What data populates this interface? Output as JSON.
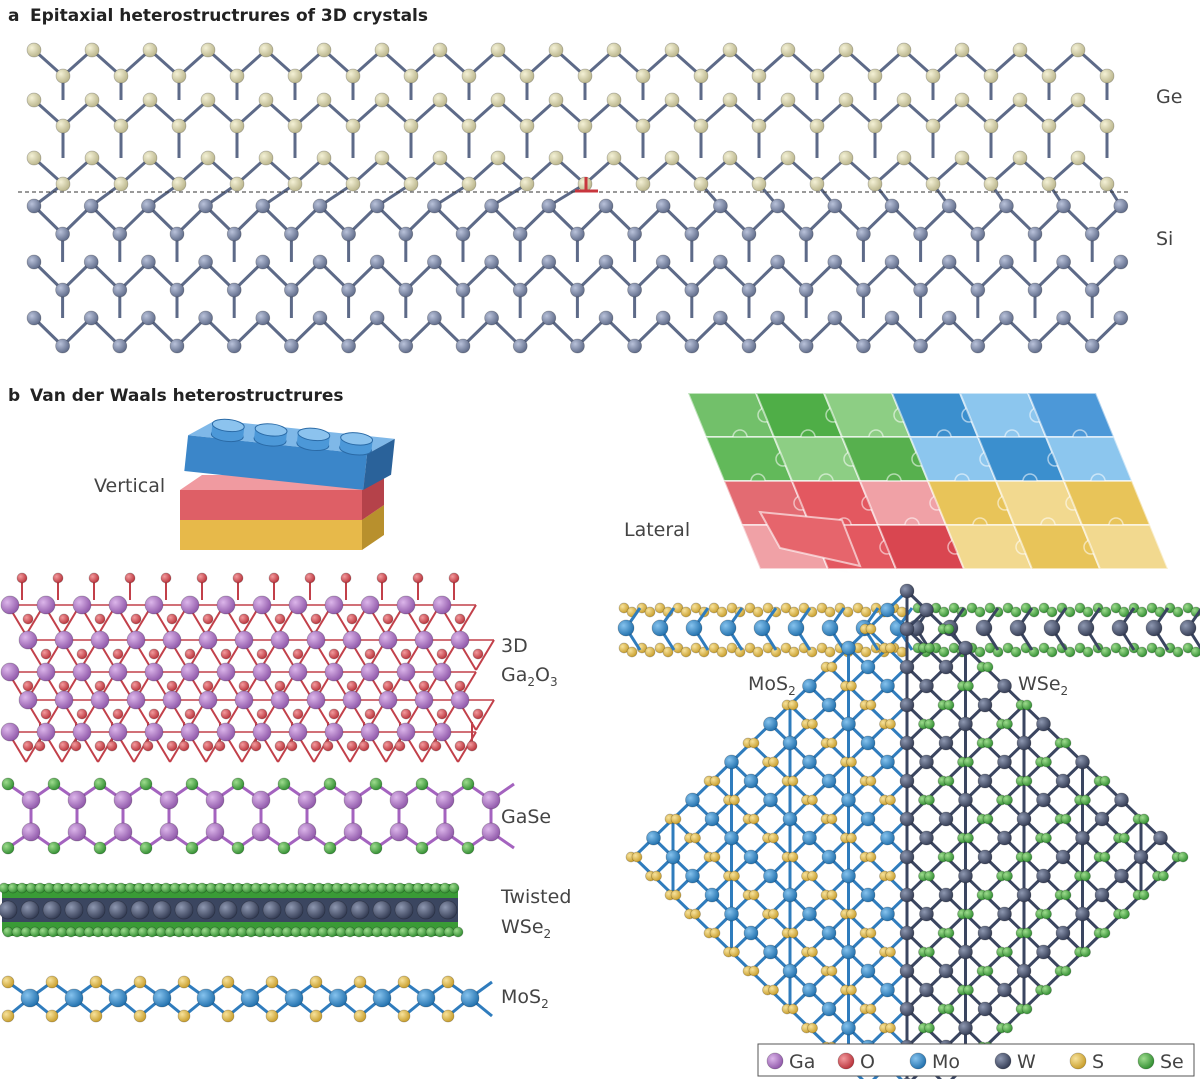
{
  "panel_a": {
    "letter": "a",
    "title": "Epitaxial heterostructrures of 3D crystals",
    "top_label": "Ge",
    "bottom_label": "Si"
  },
  "panel_b": {
    "letter": "b",
    "title": "Van der Waals heterostructrures",
    "vertical_label": "Vertical",
    "lateral_label": "Lateral",
    "layers": {
      "ga2o3_line1": "3D",
      "ga2o3_base1": "Ga",
      "ga2o3_sub1": "2",
      "ga2o3_base2": "O",
      "ga2o3_sub2": "3",
      "gase": "GaSe",
      "twisted_line1": "Twisted",
      "twisted_base": "WSe",
      "twisted_sub": "2",
      "mos2_base": "MoS",
      "mos2_sub": "2"
    },
    "lateral_layers": {
      "left_base": "MoS",
      "left_sub": "2",
      "right_base": "WSe",
      "right_sub": "2"
    }
  },
  "legend": [
    {
      "label": "Ga",
      "color": "#b07cc6"
    },
    {
      "label": "O",
      "color": "#d9525a"
    },
    {
      "label": "Mo",
      "color": "#3b8fce"
    },
    {
      "label": "W",
      "color": "#55607a"
    },
    {
      "label": "S",
      "color": "#e6c155"
    },
    {
      "label": "Se",
      "color": "#4fb34a"
    }
  ],
  "colors": {
    "ge_atom": "#d9d4ad",
    "si_atom": "#7f8aa6",
    "bond": "#5d6a88",
    "dislocation": "#c8363d",
    "ga": "#b07cc6",
    "o": "#d9525a",
    "mo": "#3b8fce",
    "w": "#55607a",
    "s": "#e6c155",
    "se": "#4fb34a"
  },
  "icons": [
    "dislocation-symbol",
    "lego-brick-stack-icon",
    "puzzle-sheet-icon"
  ]
}
